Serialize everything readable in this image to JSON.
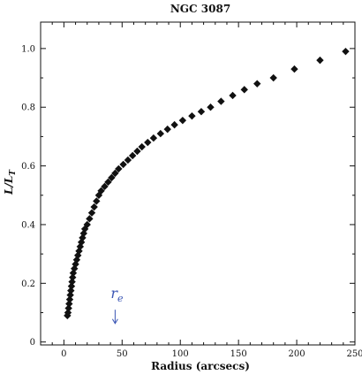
{
  "chart_data": {
    "type": "scatter",
    "title": "NGC 3087",
    "xlabel": "Radius (arcsecs)",
    "ylabel": "L/L",
    "ylabel_subscript": "T",
    "xlim": [
      -20,
      250
    ],
    "ylim": [
      -0.01,
      1.09
    ],
    "x_ticks": [
      0,
      50,
      100,
      150,
      200,
      250
    ],
    "y_ticks": [
      0,
      0.2,
      0.4,
      0.6,
      0.8,
      1.0
    ],
    "y_tick_labels": [
      "0",
      "0.2",
      "0.4",
      "0.6",
      "0.8",
      "1.0"
    ],
    "marker": "diamond",
    "marker_color": "#111111",
    "annotation": {
      "text": "r",
      "subscript": "e",
      "x": 44,
      "y_text": 0.15,
      "arrow_from": 0.11,
      "arrow_to": 0.063,
      "color": "#3a55b4"
    },
    "series": [
      {
        "x": [
          3,
          3.5,
          4,
          4.5,
          5,
          5.5,
          6,
          6.5,
          7,
          7.5,
          8,
          9,
          10,
          11,
          12,
          13,
          14,
          15,
          16,
          17,
          18,
          20,
          22,
          24,
          26,
          28,
          30,
          32,
          35,
          38,
          41,
          44,
          47,
          51,
          55,
          59,
          63,
          67,
          72,
          77,
          83,
          89,
          95,
          102,
          110,
          118,
          126,
          135,
          145,
          155,
          166,
          180,
          198,
          220,
          242
        ],
        "y": [
          0.09,
          0.1,
          0.115,
          0.13,
          0.145,
          0.16,
          0.175,
          0.19,
          0.205,
          0.22,
          0.235,
          0.25,
          0.265,
          0.28,
          0.295,
          0.31,
          0.325,
          0.34,
          0.355,
          0.37,
          0.385,
          0.4,
          0.42,
          0.44,
          0.46,
          0.48,
          0.5,
          0.515,
          0.53,
          0.545,
          0.56,
          0.575,
          0.59,
          0.605,
          0.62,
          0.635,
          0.65,
          0.665,
          0.68,
          0.695,
          0.71,
          0.725,
          0.74,
          0.755,
          0.77,
          0.785,
          0.8,
          0.82,
          0.84,
          0.86,
          0.88,
          0.9,
          0.93,
          0.96,
          0.99
        ]
      }
    ]
  }
}
